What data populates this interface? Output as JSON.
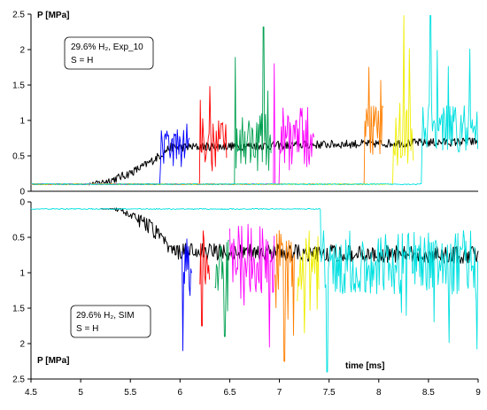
{
  "chart_data": {
    "type": "line",
    "xlabel": "time [ms]",
    "xticks": [
      "4.5",
      "5",
      "5.5",
      "6",
      "6.5",
      "7",
      "7.5",
      "8",
      "8.5",
      "9"
    ],
    "x_values": [
      4.5,
      5,
      5.5,
      6,
      6.5,
      7,
      7.5,
      8,
      8.5,
      9
    ],
    "xlim": [
      4.5,
      9
    ],
    "grid": false,
    "panels": [
      {
        "id": "top",
        "ylabel": "P [MPa]",
        "ylim": [
          0,
          2.5
        ],
        "y_inverted": false,
        "yticks": [
          "0",
          "0.5",
          "1",
          "1.5",
          "2",
          "2.5"
        ],
        "y_values": [
          0,
          0.5,
          1,
          1.5,
          2,
          2.5
        ],
        "annotation": {
          "line1": "29.6% H₂, Exp_10",
          "line2": "S = H"
        },
        "series": [
          {
            "color": "#000000",
            "kind": "avg",
            "start": 4.5,
            "pre": 0.1,
            "rise": [
              5.0,
              5.9
            ],
            "level": 0.62,
            "end_level": 0.7,
            "noise": 0.06
          },
          {
            "color": "#0000ff",
            "kind": "sensor",
            "start": 4.5,
            "pre": 0.1,
            "t_on": 5.8,
            "t_end": 6.1,
            "level": 0.62,
            "amp": 0.28,
            "peak": 0.95,
            "t_peak": 6.07
          },
          {
            "color": "#ff0000",
            "kind": "sensor",
            "start": 4.5,
            "pre": 0.1,
            "t_on": 6.2,
            "t_end": 6.47,
            "level": 0.65,
            "amp": 0.38,
            "peak": 1.48,
            "t_peak": 6.3
          },
          {
            "color": "#00a050",
            "kind": "sensor",
            "start": 4.5,
            "pre": 0.1,
            "t_on": 6.55,
            "t_end": 6.92,
            "level": 0.7,
            "amp": 0.42,
            "peak": 2.32,
            "t_peak": 6.84
          },
          {
            "color": "#ff00ff",
            "kind": "sensor",
            "start": 4.5,
            "pre": 0.1,
            "t_on": 7.0,
            "t_end": 7.35,
            "level": 0.75,
            "amp": 0.45,
            "peak": 1.8,
            "t_peak": 6.95
          },
          {
            "color": "#ff7f00",
            "kind": "sensor",
            "start": 4.5,
            "pre": 0.1,
            "t_on": 7.86,
            "t_end": 8.05,
            "level": 0.85,
            "amp": 0.4,
            "peak": 1.75,
            "t_peak": 7.9
          },
          {
            "color": "#eeee00",
            "kind": "sensor",
            "start": 4.5,
            "pre": 0.1,
            "t_on": 8.14,
            "t_end": 8.35,
            "level": 0.8,
            "amp": 0.45,
            "peak": 2.48,
            "t_peak": 8.25
          },
          {
            "color": "#00e0e0",
            "kind": "sensor",
            "start": 4.5,
            "pre": 0.1,
            "t_on": 8.43,
            "t_end": 9.0,
            "level": 0.9,
            "amp": 0.35,
            "peak": 2.48,
            "t_peak": 8.52
          }
        ]
      },
      {
        "id": "bottom",
        "ylabel": "P [MPa]",
        "ylim": [
          0,
          2.5
        ],
        "y_inverted": true,
        "yticks": [
          "0",
          "0.5",
          "1",
          "1.5",
          "2",
          "2.5"
        ],
        "y_values": [
          0,
          0.5,
          1,
          1.5,
          2,
          2.5
        ],
        "annotation": {
          "line1": "29.6% H₂, SIM",
          "line2": "S = H"
        },
        "series": [
          {
            "color": "#000000",
            "kind": "avg",
            "start": 5.2,
            "pre": 0.1,
            "rise": [
              5.3,
              5.9
            ],
            "level": 0.7,
            "end_level": 0.75,
            "noise": 0.12
          },
          {
            "color": "#0000ff",
            "kind": "sensor",
            "start": 6.02,
            "pre": 0.1,
            "t_on": 6.02,
            "t_end": 6.12,
            "level": 0.8,
            "amp": 0.4,
            "peak": 2.1,
            "t_peak": 6.03
          },
          {
            "color": "#ff0000",
            "kind": "sensor",
            "start": 6.2,
            "pre": 0.1,
            "t_on": 6.2,
            "t_end": 6.3,
            "level": 0.8,
            "amp": 0.4,
            "peak": 1.75,
            "t_peak": 6.22
          },
          {
            "color": "#00a050",
            "kind": "sensor",
            "start": 6.35,
            "pre": 0.1,
            "t_on": 6.35,
            "t_end": 6.5,
            "level": 0.8,
            "amp": 0.45,
            "peak": 1.9,
            "t_peak": 6.45
          },
          {
            "color": "#ff00ff",
            "kind": "sensor",
            "start": 6.5,
            "pre": 0.1,
            "t_on": 6.5,
            "t_end": 6.95,
            "level": 0.8,
            "amp": 0.5,
            "peak": 2.05,
            "t_peak": 6.9
          },
          {
            "color": "#ff7f00",
            "kind": "sensor",
            "start": 6.95,
            "pre": 0.1,
            "t_on": 6.95,
            "t_end": 7.15,
            "level": 0.8,
            "amp": 0.45,
            "peak": 2.25,
            "t_peak": 7.05
          },
          {
            "color": "#eeee00",
            "kind": "sensor",
            "start": 7.18,
            "pre": 0.1,
            "t_on": 7.18,
            "t_end": 7.4,
            "level": 0.8,
            "amp": 0.45,
            "peak": 1.85,
            "t_peak": 7.25
          },
          {
            "color": "#00e0e0",
            "kind": "sensor",
            "start": 4.5,
            "pre": 0.1,
            "t_on": 7.42,
            "t_end": 9.0,
            "level": 0.85,
            "amp": 0.45,
            "peak": 2.4,
            "t_peak": 7.48
          }
        ]
      }
    ]
  }
}
